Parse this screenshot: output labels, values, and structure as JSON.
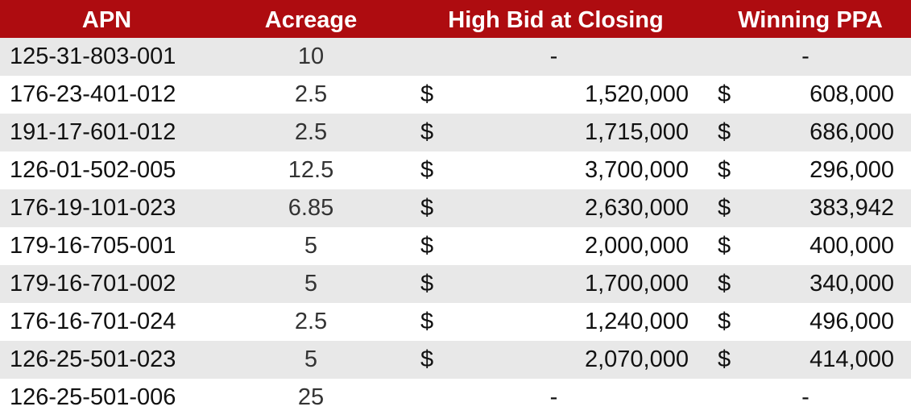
{
  "header": {
    "apn": "APN",
    "acreage": "Acreage",
    "high_bid": "High Bid at Closing",
    "winning_ppa": "Winning PPA"
  },
  "colors": {
    "header_bg": "#ae0c10",
    "header_text": "#ffffff",
    "stripe": "#e8e8e8"
  },
  "rows": [
    {
      "apn": "125-31-803-001",
      "acreage": "10",
      "bid_symbol": "",
      "bid": "-",
      "ppa_symbol": "",
      "ppa": "-"
    },
    {
      "apn": "176-23-401-012",
      "acreage": "2.5",
      "bid_symbol": "$",
      "bid": "1,520,000",
      "ppa_symbol": "$",
      "ppa": "608,000"
    },
    {
      "apn": "191-17-601-012",
      "acreage": "2.5",
      "bid_symbol": "$",
      "bid": "1,715,000",
      "ppa_symbol": "$",
      "ppa": "686,000"
    },
    {
      "apn": "126-01-502-005",
      "acreage": "12.5",
      "bid_symbol": "$",
      "bid": "3,700,000",
      "ppa_symbol": "$",
      "ppa": "296,000"
    },
    {
      "apn": "176-19-101-023",
      "acreage": "6.85",
      "bid_symbol": "$",
      "bid": "2,630,000",
      "ppa_symbol": "$",
      "ppa": "383,942"
    },
    {
      "apn": "179-16-705-001",
      "acreage": "5",
      "bid_symbol": "$",
      "bid": "2,000,000",
      "ppa_symbol": "$",
      "ppa": "400,000"
    },
    {
      "apn": "179-16-701-002",
      "acreage": "5",
      "bid_symbol": "$",
      "bid": "1,700,000",
      "ppa_symbol": "$",
      "ppa": "340,000"
    },
    {
      "apn": "176-16-701-024",
      "acreage": "2.5",
      "bid_symbol": "$",
      "bid": "1,240,000",
      "ppa_symbol": "$",
      "ppa": "496,000"
    },
    {
      "apn": "126-25-501-023",
      "acreage": "5",
      "bid_symbol": "$",
      "bid": "2,070,000",
      "ppa_symbol": "$",
      "ppa": "414,000"
    },
    {
      "apn": "126-25-501-006",
      "acreage": "25",
      "bid_symbol": "",
      "bid": "-",
      "ppa_symbol": "",
      "ppa": "-"
    }
  ]
}
